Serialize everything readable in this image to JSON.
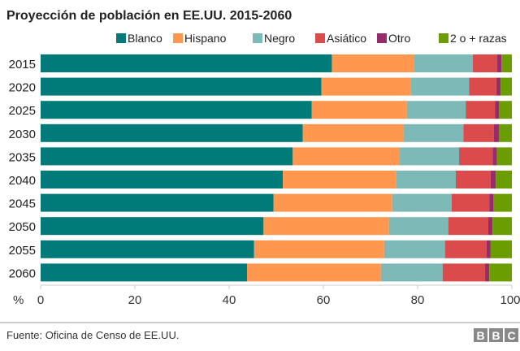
{
  "chart_data": {
    "type": "bar",
    "orientation": "horizontal",
    "stacked": true,
    "title": "Proyección de población en EE.UU. 2015-2060",
    "xlabel": "%",
    "ylabel": "",
    "xlim": [
      0,
      100
    ],
    "xticks": [
      "0",
      "20",
      "40",
      "60",
      "80",
      "100"
    ],
    "grid": false,
    "legend_position": "top-right",
    "categories": [
      "2015",
      "2020",
      "2025",
      "2030",
      "2035",
      "2040",
      "2045",
      "2050",
      "2055",
      "2060"
    ],
    "series": [
      {
        "name": "Blanco",
        "color": "#017B7A",
        "values": [
          61.8,
          59.6,
          57.5,
          55.6,
          53.5,
          51.4,
          49.4,
          47.3,
          45.3,
          43.8
        ]
      },
      {
        "name": "Hispano",
        "color": "#FF974F",
        "values": [
          17.5,
          19.0,
          20.2,
          21.4,
          22.6,
          24.0,
          25.2,
          26.6,
          27.6,
          28.4
        ]
      },
      {
        "name": "Negro",
        "color": "#7DB9B6",
        "values": [
          12.4,
          12.3,
          12.5,
          12.7,
          12.7,
          12.7,
          12.6,
          12.6,
          12.9,
          13.1
        ]
      },
      {
        "name": "Asiático",
        "color": "#DB4B4B",
        "values": [
          5.2,
          5.8,
          6.2,
          6.5,
          7.1,
          7.4,
          8.0,
          8.5,
          8.8,
          9.0
        ]
      },
      {
        "name": "Otro",
        "color": "#972C6B",
        "values": [
          0.9,
          0.9,
          0.9,
          1.1,
          0.9,
          1.1,
          0.9,
          0.9,
          0.9,
          0.9
        ]
      },
      {
        "name": "2 o + razas",
        "color": "#6B9C00",
        "values": [
          2.2,
          2.4,
          2.7,
          2.7,
          3.2,
          3.4,
          3.9,
          4.1,
          4.5,
          4.8
        ]
      }
    ]
  },
  "footer": {
    "source": "Fuente: Oficina de Censo de EE.UU.",
    "logo": "BBC"
  }
}
